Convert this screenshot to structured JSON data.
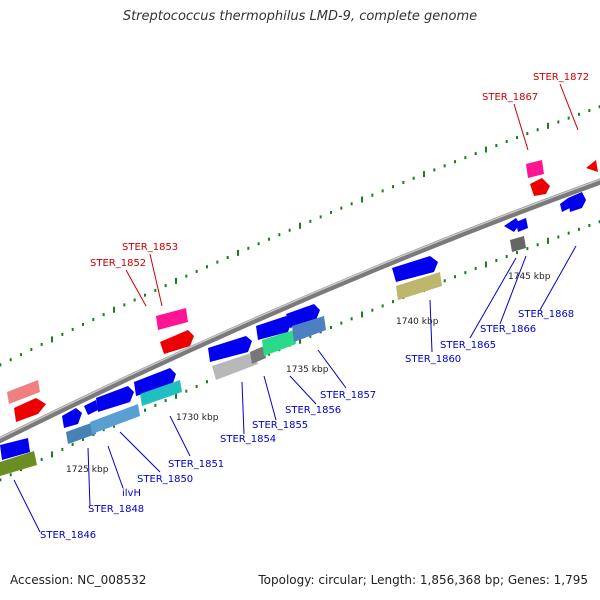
{
  "title": "Streptococcus thermophilus LMD-9, complete genome",
  "accession": "Accession: NC_008532",
  "summary": "Topology: circular; Length: 1,856,368 bp; Genes: 1,795",
  "colors": {
    "backbone": "#8c8c8c",
    "tick_green": "#1a7f1a",
    "blue_label": "#0000cc",
    "red_label": "#cc0000"
  },
  "kbp_ticks": [
    {
      "label": "1725 kbp"
    },
    {
      "label": "1730 kbp"
    },
    {
      "label": "1735 kbp"
    },
    {
      "label": "1740 kbp"
    },
    {
      "label": "1745 kbp"
    }
  ],
  "gene_labels": [
    {
      "text": "STER_1846",
      "color": "blue"
    },
    {
      "text": "STER_1848",
      "color": "blue"
    },
    {
      "text": "ilvH",
      "color": "blue"
    },
    {
      "text": "STER_1850",
      "color": "blue"
    },
    {
      "text": "STER_1851",
      "color": "blue"
    },
    {
      "text": "STER_1852",
      "color": "red"
    },
    {
      "text": "STER_1853",
      "color": "red"
    },
    {
      "text": "STER_1854",
      "color": "blue"
    },
    {
      "text": "STER_1855",
      "color": "blue"
    },
    {
      "text": "STER_1856",
      "color": "blue"
    },
    {
      "text": "STER_1857",
      "color": "blue"
    },
    {
      "text": "STER_1860",
      "color": "blue"
    },
    {
      "text": "STER_1865",
      "color": "blue"
    },
    {
      "text": "STER_1866",
      "color": "blue"
    },
    {
      "text": "STER_1868",
      "color": "blue"
    },
    {
      "text": "STER_1867",
      "color": "red"
    },
    {
      "text": "STER_1872",
      "color": "red"
    }
  ]
}
